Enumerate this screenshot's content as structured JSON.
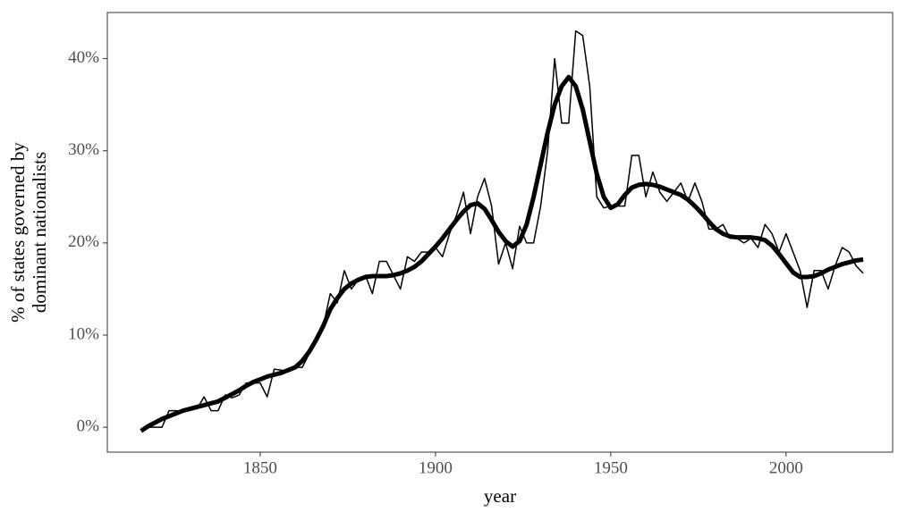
{
  "chart_data": {
    "type": "line",
    "xlabel": "year",
    "ylabel": [
      "% of states governed by",
      "dominant nationalists"
    ],
    "x": [
      1816,
      1818,
      1820,
      1822,
      1824,
      1826,
      1828,
      1830,
      1832,
      1834,
      1836,
      1838,
      1840,
      1842,
      1844,
      1846,
      1848,
      1850,
      1852,
      1854,
      1856,
      1858,
      1860,
      1862,
      1864,
      1866,
      1868,
      1870,
      1872,
      1874,
      1876,
      1878,
      1880,
      1882,
      1884,
      1886,
      1888,
      1890,
      1892,
      1894,
      1896,
      1898,
      1900,
      1902,
      1904,
      1906,
      1908,
      1910,
      1912,
      1914,
      1916,
      1918,
      1920,
      1922,
      1924,
      1926,
      1928,
      1930,
      1932,
      1934,
      1936,
      1938,
      1940,
      1942,
      1944,
      1946,
      1948,
      1950,
      1952,
      1954,
      1956,
      1958,
      1960,
      1962,
      1964,
      1966,
      1968,
      1970,
      1972,
      1974,
      1976,
      1978,
      1980,
      1982,
      1984,
      1986,
      1988,
      1990,
      1992,
      1994,
      1996,
      1998,
      2000,
      2002,
      2004,
      2006,
      2008,
      2010,
      2012,
      2014,
      2016,
      2018,
      2020,
      2022
    ],
    "series": [
      {
        "color": "#000000",
        "line_width": 1.5,
        "values": [
          -0.3,
          0,
          0,
          0,
          1.8,
          1.8,
          1.7,
          2,
          2,
          3.3,
          1.8,
          1.8,
          3.5,
          3.2,
          3.5,
          4.8,
          4.8,
          4.8,
          3.3,
          6.3,
          6.2,
          6,
          6.5,
          6.5,
          8,
          9.5,
          11,
          14.5,
          13.5,
          17,
          15,
          16,
          16.5,
          14.5,
          18,
          18,
          16.5,
          15,
          18.5,
          18,
          19,
          19,
          19.5,
          18.5,
          21,
          23,
          25.5,
          21,
          25,
          27,
          24,
          17.7,
          20,
          17.2,
          21.8,
          20,
          20,
          24,
          30,
          40,
          33,
          33,
          43,
          42.5,
          37,
          25,
          23.8,
          24,
          24,
          24,
          29.5,
          29.5,
          25,
          27.7,
          25.5,
          24.5,
          25.5,
          26.5,
          24.5,
          26.5,
          24.5,
          21.5,
          21.5,
          22,
          20.5,
          20.5,
          20,
          20.5,
          19.5,
          22,
          21,
          19,
          21,
          19,
          17,
          13,
          17,
          17,
          15,
          17.5,
          19.5,
          19,
          17.5,
          16.7
        ]
      },
      {
        "color": "#000000",
        "line_width": 5,
        "values": [
          -0.4,
          0.1,
          0.5,
          0.9,
          1.2,
          1.5,
          1.8,
          2.0,
          2.2,
          2.4,
          2.6,
          2.8,
          3.2,
          3.6,
          4.0,
          4.5,
          4.9,
          5.2,
          5.5,
          5.7,
          5.9,
          6.2,
          6.5,
          7.2,
          8.2,
          9.5,
          11,
          12.8,
          14,
          15,
          15.6,
          16,
          16.3,
          16.4,
          16.4,
          16.4,
          16.5,
          16.7,
          17,
          17.4,
          18,
          18.8,
          19.6,
          20.5,
          21.5,
          22.5,
          23.4,
          24.1,
          24.3,
          23.7,
          22.5,
          21.2,
          20.2,
          19.6,
          20.2,
          22,
          25,
          28.5,
          32,
          35,
          37,
          38,
          37,
          34.5,
          31,
          27.5,
          25,
          23.8,
          24.2,
          25.2,
          26,
          26.3,
          26.4,
          26.3,
          26.1,
          25.8,
          25.5,
          25.2,
          24.7,
          24,
          23.2,
          22.3,
          21.5,
          21,
          20.7,
          20.6,
          20.6,
          20.6,
          20.5,
          20.3,
          19.7,
          18.8,
          17.8,
          16.8,
          16.3,
          16.3,
          16.4,
          16.7,
          17.1,
          17.4,
          17.7,
          17.9,
          18.1,
          18.2
        ]
      }
    ],
    "xlim": [
      1806.4,
      2030.4
    ],
    "xticks": [
      1850,
      1900,
      1950,
      2000
    ],
    "ylim": [
      -2.7,
      45.0
    ],
    "yticks": [
      {
        "value": 0,
        "label": "0%"
      },
      {
        "value": 10,
        "label": "10%"
      },
      {
        "value": 20,
        "label": "20%"
      },
      {
        "value": 30,
        "label": "30%"
      },
      {
        "value": 40,
        "label": "40%"
      }
    ],
    "grid": false
  }
}
